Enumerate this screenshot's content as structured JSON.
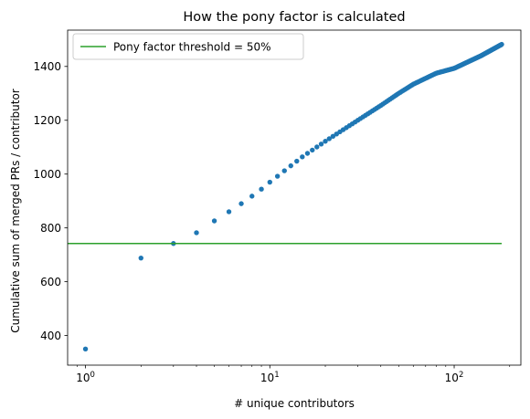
{
  "chart_data": {
    "type": "scatter",
    "title": "How the pony factor is calculated",
    "xlabel": "# unique contributors",
    "ylabel": "Cumulative sum of merged PRs / contributor",
    "xscale": "log",
    "xlim": [
      0.8,
      230
    ],
    "ylim": [
      290,
      1535
    ],
    "xticks": [
      {
        "value": 1,
        "base": "10",
        "exp": "0"
      },
      {
        "value": 10,
        "base": "10",
        "exp": "1"
      },
      {
        "value": 100,
        "base": "10",
        "exp": "2"
      }
    ],
    "yticks": [
      400,
      600,
      800,
      1000,
      1200,
      1400
    ],
    "grid": false,
    "legend_placement": "top-left",
    "series": [
      {
        "kind": "points",
        "color": "#1f77b4",
        "x_start": 1,
        "x_end": 181,
        "anchors": [
          [
            1,
            350
          ],
          [
            2,
            688
          ],
          [
            3,
            742
          ],
          [
            4,
            782
          ],
          [
            5,
            826
          ],
          [
            6,
            860
          ],
          [
            7,
            890
          ],
          [
            8,
            918
          ],
          [
            9,
            944
          ],
          [
            10,
            970
          ],
          [
            15,
            1064
          ],
          [
            20,
            1122
          ],
          [
            30,
            1200
          ],
          [
            40,
            1255
          ],
          [
            50,
            1300
          ],
          [
            60,
            1334
          ],
          [
            80,
            1375
          ],
          [
            100,
            1393
          ],
          [
            140,
            1440
          ],
          [
            181,
            1482
          ]
        ]
      },
      {
        "kind": "line",
        "name": "Pony factor threshold = 50%",
        "color": "#2ca02c",
        "y": 742,
        "x_range": [
          0.8,
          181
        ]
      }
    ]
  }
}
